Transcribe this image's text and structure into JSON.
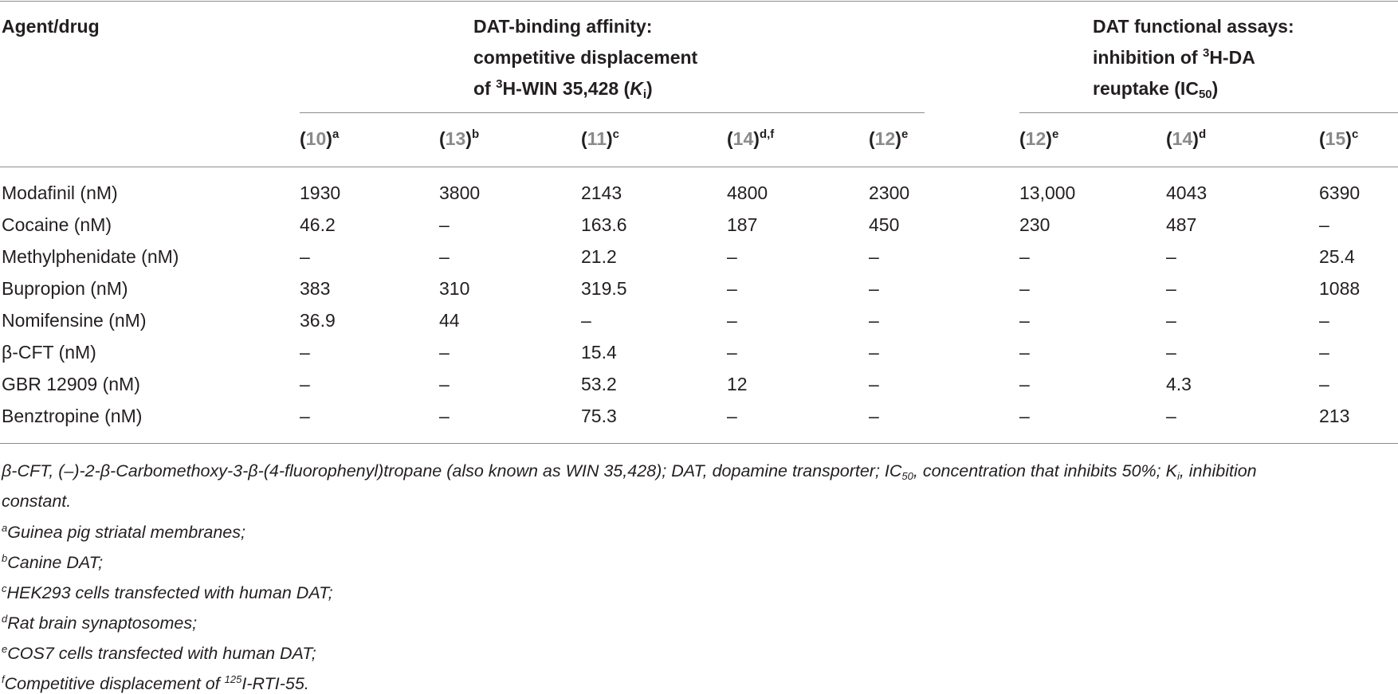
{
  "table": {
    "agent_header": "Agent/drug",
    "group1": {
      "line1": "DAT-binding affinity:",
      "line2": "competitive displacement",
      "line3_pre": "of ",
      "line3_sup": "3",
      "line3_mid": "H-WIN 35,428 (",
      "line3_k": "K",
      "line3_sub": "i",
      "line3_post": ")"
    },
    "group2": {
      "line1": "DAT functional assays:",
      "line2_pre": "inhibition of ",
      "line2_sup": "3",
      "line2_post": "H-DA",
      "line3_pre": "reuptake (IC",
      "line3_sub": "50",
      "line3_post": ")"
    },
    "columns": [
      {
        "ref": "10",
        "note": "a"
      },
      {
        "ref": "13",
        "note": "b"
      },
      {
        "ref": "11",
        "note": "c"
      },
      {
        "ref": "14",
        "note": "d,f"
      },
      {
        "ref": "12",
        "note": "e"
      },
      {
        "ref": "12",
        "note": "e"
      },
      {
        "ref": "14",
        "note": "d"
      },
      {
        "ref": "15",
        "note": "c"
      }
    ],
    "rows": [
      {
        "label": "Modafinil (nM)",
        "values": [
          "1930",
          "3800",
          "2143",
          "4800",
          "2300",
          "13,000",
          "4043",
          "6390"
        ]
      },
      {
        "label": "Cocaine (nM)",
        "values": [
          "46.2",
          "–",
          "163.6",
          "187",
          "450",
          "230",
          "487",
          "–"
        ]
      },
      {
        "label": "Methylphenidate (nM)",
        "values": [
          "–",
          "–",
          "21.2",
          "–",
          "–",
          "–",
          "–",
          "25.4"
        ]
      },
      {
        "label": "Bupropion (nM)",
        "values": [
          "383",
          "310",
          "319.5",
          "–",
          "–",
          "–",
          "–",
          "1088"
        ]
      },
      {
        "label": "Nomifensine (nM)",
        "values": [
          "36.9",
          "44",
          "–",
          "–",
          "–",
          "–",
          "–",
          "–"
        ]
      },
      {
        "label": "β-CFT (nM)",
        "values": [
          "–",
          "–",
          "15.4",
          "–",
          "–",
          "–",
          "–",
          "–"
        ]
      },
      {
        "label": "GBR 12909 (nM)",
        "values": [
          "–",
          "–",
          "53.2",
          "12",
          "–",
          "–",
          "4.3",
          "–"
        ]
      },
      {
        "label": "Benztropine (nM)",
        "values": [
          "–",
          "–",
          "75.3",
          "–",
          "–",
          "–",
          "–",
          "213"
        ]
      }
    ]
  },
  "footnotes": {
    "main_line1_a": "β-CFT, (–)-2-β-Carbomethoxy-3-β-(4-fluorophenyl)tropane (also known as WIN 35,428); DAT, dopamine transporter; IC",
    "main_line1_sub1": "50",
    "main_line1_b": ", concentration that inhibits 50%; K",
    "main_line1_sub2": "i",
    "main_line1_c": ", inhibition",
    "main_line2": "constant.",
    "items": [
      {
        "mark": "a",
        "text": "Guinea pig striatal membranes;"
      },
      {
        "mark": "b",
        "text": "Canine DAT;"
      },
      {
        "mark": "c",
        "text": "HEK293 cells transfected with human DAT;"
      },
      {
        "mark": "d",
        "text": "Rat brain synaptosomes;"
      },
      {
        "mark": "e",
        "text": "COS7 cells transfected with human DAT;"
      },
      {
        "mark": "f",
        "pre": "Competitive displacement of ",
        "sup": "125",
        "post": "I-RTI-55."
      }
    ]
  }
}
